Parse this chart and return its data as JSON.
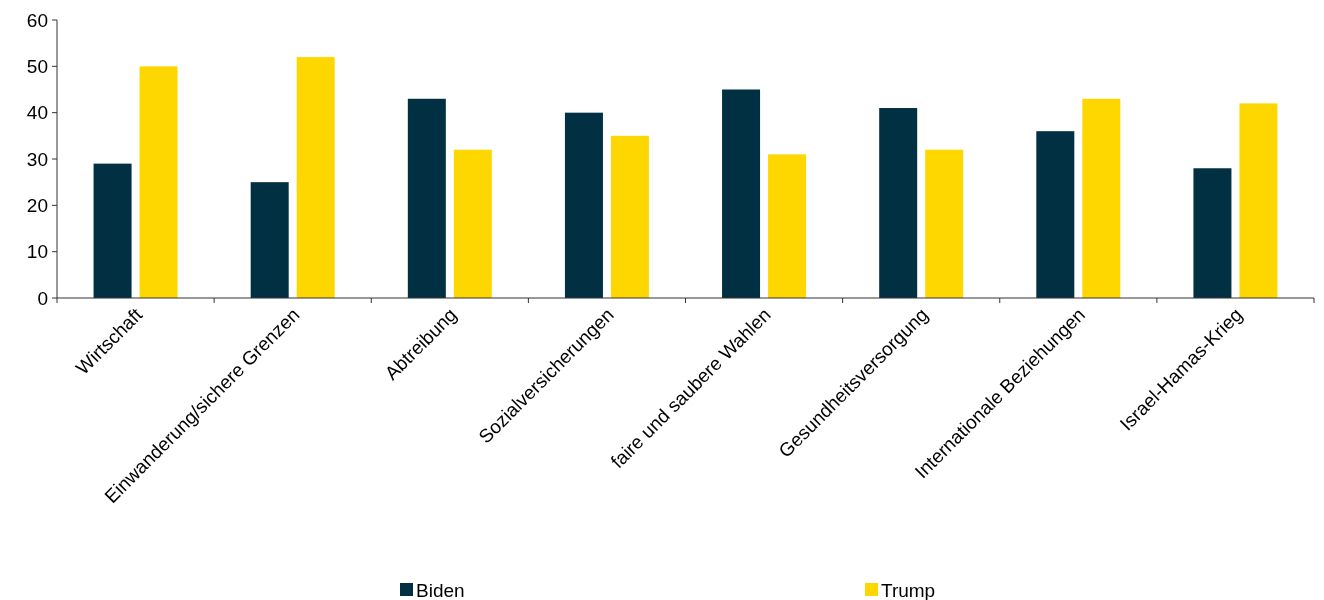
{
  "chart_data": {
    "type": "bar",
    "categories": [
      "Wirtschaft",
      "Einwanderung/sichere Grenzen",
      "Abtreibung",
      "Sozialversicherungen",
      "faire und saubere Wahlen",
      "Gesundheitsversorgung",
      "Internationale Beziehungen",
      "Israel-Hamas-Krieg"
    ],
    "series": [
      {
        "name": "Biden",
        "color": "#003041",
        "values": [
          29,
          25,
          43,
          40,
          45,
          41,
          36,
          28
        ]
      },
      {
        "name": "Trump",
        "color": "#ffd700",
        "values": [
          50,
          52,
          32,
          35,
          31,
          32,
          43,
          42
        ]
      }
    ],
    "ylim": [
      0,
      60
    ],
    "yticks": [
      0,
      10,
      20,
      30,
      40,
      50,
      60
    ],
    "grid": false,
    "legend": "bottom"
  }
}
